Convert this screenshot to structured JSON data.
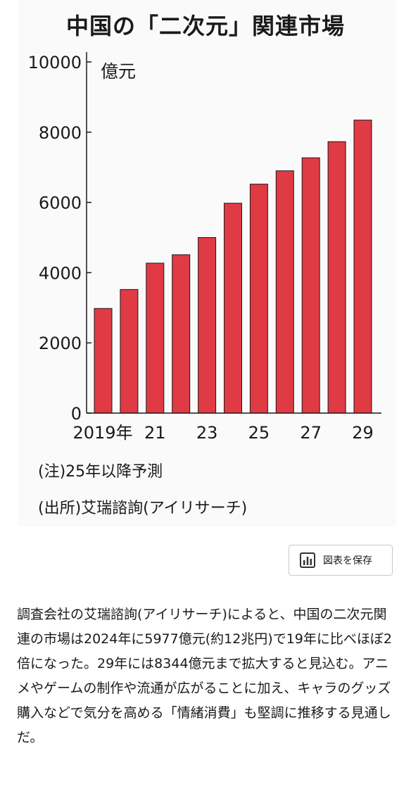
{
  "page": {
    "title": "中国の「二次元」関連市場",
    "note_forecast": "(注)25年以降予測",
    "note_source": "(出所)艾瑞諮詢(アイリサーチ)",
    "save_button_label": "図表を保存",
    "save_icon": "bar-chart-icon",
    "article": "調査会社の艾瑞諮詢(アイリサーチ)によると、中国の二次元関連の市場は2024年に5977億元(約12兆円)で19年に比べほぼ2倍になった。29年には8344億元まで拡大すると見込む。アニメやゲームの制作や流通が広がることに加え、キャラのグッズ購入などで気分を高める「情緒消費」も堅調に推移する見通しだ。"
  },
  "chart_data": {
    "type": "bar",
    "title": "中国の「二次元」関連市場",
    "unit_label": "億元",
    "categories": [
      "2019",
      "2020",
      "2021",
      "2022",
      "2023",
      "2024",
      "2025",
      "2026",
      "2027",
      "2028",
      "2029"
    ],
    "values": [
      2980,
      3520,
      4270,
      4510,
      5000,
      5977,
      6520,
      6900,
      7270,
      7730,
      8344
    ],
    "x_tick_labels": [
      {
        "index": 0,
        "text": "2019年"
      },
      {
        "index": 2,
        "text": "21"
      },
      {
        "index": 4,
        "text": "23"
      },
      {
        "index": 6,
        "text": "25"
      },
      {
        "index": 8,
        "text": "27"
      },
      {
        "index": 10,
        "text": "29"
      }
    ],
    "y_ticks": [
      0,
      2000,
      4000,
      6000,
      8000,
      10000
    ],
    "ylim": [
      0,
      10000
    ],
    "bar_color": "#e03a45",
    "bar_edge_color": "#1a1a1a",
    "grid": false,
    "legend": "none"
  }
}
